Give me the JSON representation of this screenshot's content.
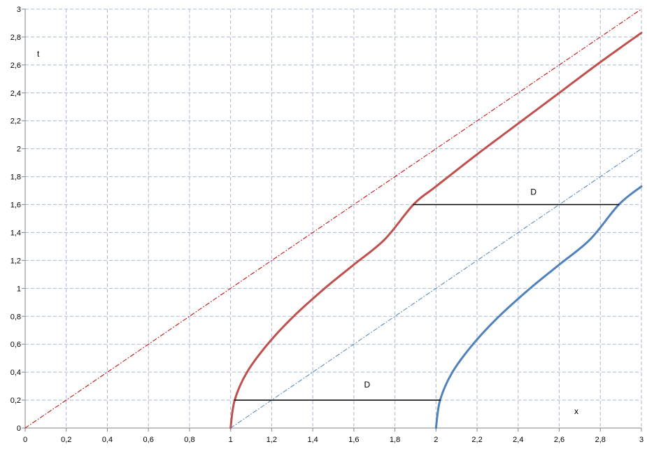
{
  "chart_data": {
    "type": "line",
    "title": "",
    "xlabel": "x",
    "ylabel": "t",
    "xlim": [
      0,
      3
    ],
    "ylim": [
      0,
      3
    ],
    "x_ticks": [
      "0",
      "0,2",
      "0,4",
      "0,6",
      "0,8",
      "1",
      "1,2",
      "1,4",
      "1,6",
      "1,8",
      "2",
      "2,2",
      "2,4",
      "2,6",
      "2,8",
      "3"
    ],
    "y_ticks": [
      "0",
      "0,2",
      "0,4",
      "0,6",
      "0,8",
      "1",
      "1,2",
      "1,4",
      "1,6",
      "1,8",
      "2",
      "2,2",
      "2,4",
      "2,6",
      "2,8",
      "3"
    ],
    "grid": true,
    "legend": "none",
    "series": [
      {
        "style": "solid",
        "color": "#c0504d",
        "x": [
          1.0,
          1.02,
          1.08,
          1.18,
          1.3,
          1.45,
          1.6,
          1.75,
          1.89,
          2.0,
          2.2,
          2.4,
          2.6,
          2.8,
          3.0
        ],
        "y": [
          0.0,
          0.2,
          0.4,
          0.6,
          0.79,
          0.99,
          1.17,
          1.35,
          1.6,
          1.73,
          1.96,
          2.18,
          2.4,
          2.62,
          2.83
        ]
      },
      {
        "style": "solid",
        "color": "#4f81bd",
        "x": [
          2.0,
          2.02,
          2.08,
          2.18,
          2.3,
          2.45,
          2.6,
          2.75,
          2.89,
          3.0
        ],
        "y": [
          0.0,
          0.2,
          0.4,
          0.6,
          0.79,
          0.99,
          1.17,
          1.35,
          1.6,
          1.73
        ]
      },
      {
        "style": "dash-dot",
        "color": "#c00000",
        "x": [
          0,
          3
        ],
        "y": [
          0,
          3
        ]
      },
      {
        "style": "dash-dot",
        "color": "#4f81bd",
        "x": [
          1,
          3
        ],
        "y": [
          0,
          2
        ]
      },
      {
        "style": "solid",
        "color": "#000000",
        "x": [
          1.02,
          2.02
        ],
        "y": [
          0.2,
          0.2
        ]
      },
      {
        "style": "solid",
        "color": "#000000",
        "x": [
          1.89,
          2.89
        ],
        "y": [
          1.6,
          1.6
        ]
      }
    ],
    "annotations": [
      {
        "text": "D",
        "x": 1.65,
        "y": 0.29
      },
      {
        "text": "D",
        "x": 2.46,
        "y": 1.67
      }
    ]
  }
}
